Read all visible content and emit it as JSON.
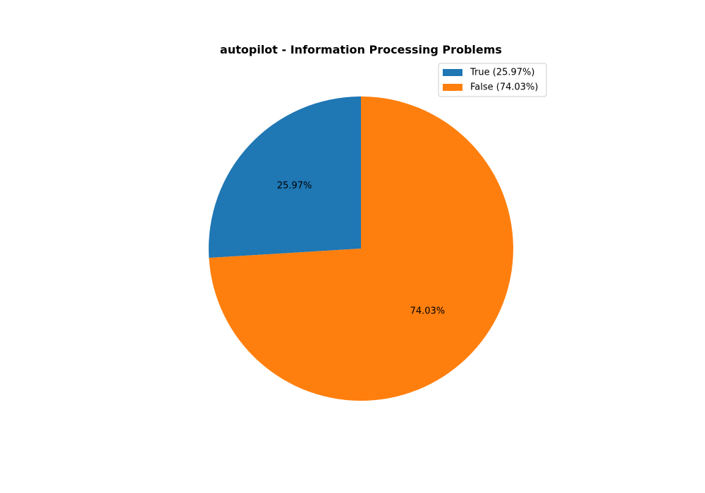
{
  "chart_data": {
    "type": "pie",
    "title": "autopilot - Information Processing Problems",
    "start_angle_deg": 90,
    "direction": "counterclockwise",
    "legend_placement": "top-right",
    "slices": [
      {
        "label": "True",
        "value": 25.97,
        "pct_label": "25.97%",
        "legend_label": "True (25.97%)",
        "color": "#1f77b4"
      },
      {
        "label": "False",
        "value": 74.03,
        "pct_label": "74.03%",
        "legend_label": "False (74.03%)",
        "color": "#ff7f0e"
      }
    ]
  }
}
